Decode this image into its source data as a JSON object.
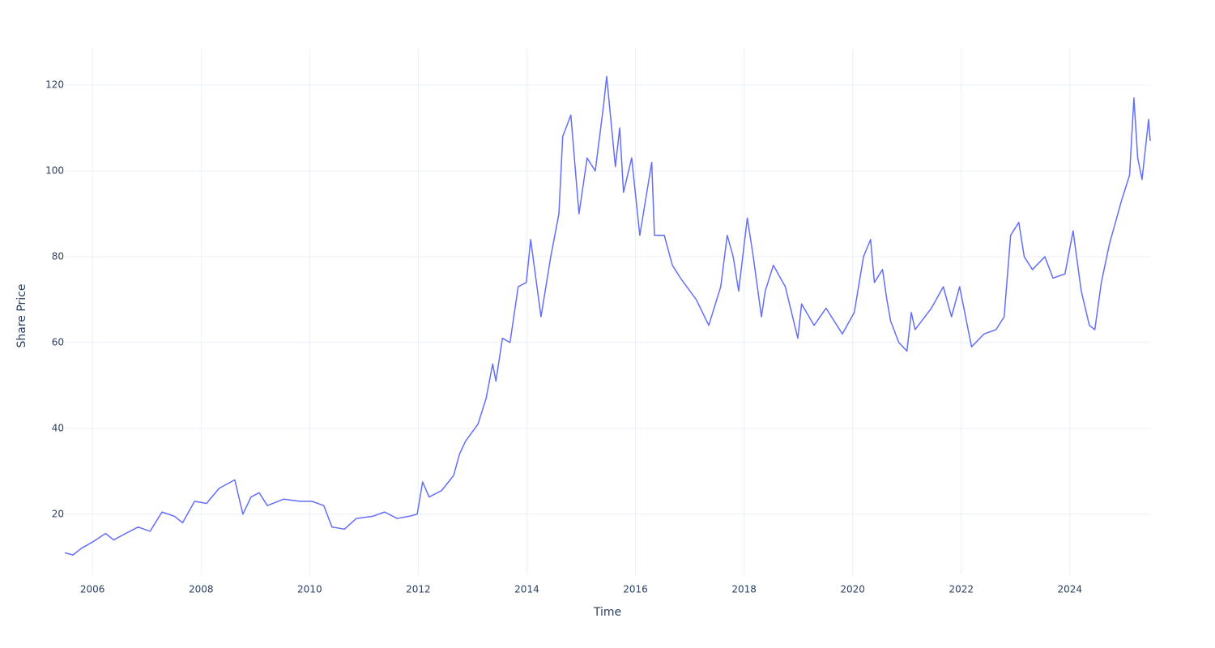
{
  "chart_data": {
    "type": "line",
    "x_label": "Time",
    "y_label": "Share Price",
    "color": "#636efa",
    "grid": true,
    "xlim": [
      2005.49,
      2025.48
    ],
    "xticks": [
      2006,
      2008,
      2010,
      2012,
      2014,
      2016,
      2018,
      2020,
      2022,
      2024
    ],
    "ylim": [
      5.8,
      128.5
    ],
    "yticks": [
      20,
      40,
      60,
      80,
      100,
      120
    ],
    "x": [
      2005.49,
      2005.64,
      2005.79,
      2006.0,
      2006.24,
      2006.39,
      2006.61,
      2006.84,
      2007.06,
      2007.28,
      2007.51,
      2007.66,
      2007.88,
      2008.1,
      2008.33,
      2008.62,
      2008.77,
      2008.92,
      2009.07,
      2009.22,
      2009.52,
      2009.82,
      2010.04,
      2010.26,
      2010.41,
      2010.64,
      2010.86,
      2011.16,
      2011.38,
      2011.61,
      2011.83,
      2011.98,
      2012.08,
      2012.2,
      2012.43,
      2012.65,
      2012.76,
      2012.87,
      2013.1,
      2013.25,
      2013.37,
      2013.43,
      2013.55,
      2013.69,
      2013.84,
      2013.99,
      2014.07,
      2014.26,
      2014.44,
      2014.59,
      2014.66,
      2014.81,
      2014.96,
      2015.11,
      2015.26,
      2015.41,
      2015.47,
      2015.63,
      2015.71,
      2015.78,
      2015.93,
      2016.08,
      2016.3,
      2016.35,
      2016.53,
      2016.68,
      2016.83,
      2017.12,
      2017.35,
      2017.57,
      2017.69,
      2017.8,
      2017.9,
      2018.06,
      2018.17,
      2018.32,
      2018.39,
      2018.54,
      2018.76,
      2018.99,
      2019.06,
      2019.29,
      2019.51,
      2019.81,
      2020.03,
      2020.2,
      2020.33,
      2020.4,
      2020.55,
      2020.63,
      2020.7,
      2020.85,
      2021.0,
      2021.08,
      2021.15,
      2021.45,
      2021.67,
      2021.82,
      2021.97,
      2022.19,
      2022.42,
      2022.64,
      2022.79,
      2022.91,
      2023.06,
      2023.16,
      2023.31,
      2023.54,
      2023.69,
      2023.91,
      2024.06,
      2024.21,
      2024.36,
      2024.46,
      2024.58,
      2024.73,
      2024.95,
      2025.1,
      2025.18,
      2025.25,
      2025.33,
      2025.45,
      2025.48
    ],
    "values": [
      11,
      10.5,
      12,
      13.5,
      15.5,
      14,
      15.5,
      17,
      16,
      20.5,
      19.5,
      18,
      23,
      22.5,
      26,
      28,
      20,
      24,
      25,
      22,
      23.5,
      23,
      23,
      22,
      17,
      16.5,
      19,
      19.5,
      20.5,
      19,
      19.5,
      20,
      27.5,
      24,
      25.5,
      29,
      34,
      37,
      41,
      47,
      55,
      51,
      61,
      60,
      73,
      74,
      84,
      66,
      80,
      90,
      108,
      113,
      90,
      103,
      100,
      115,
      122,
      101,
      110,
      95,
      103,
      85,
      102,
      85,
      85,
      78,
      75,
      70,
      64,
      73,
      85,
      80,
      72,
      89,
      80,
      66,
      72,
      78,
      73,
      61,
      69,
      64,
      68,
      62,
      67,
      80,
      84,
      74,
      77,
      70,
      65,
      60,
      58,
      67,
      63,
      68,
      73,
      66,
      73,
      59,
      62,
      63,
      66,
      85,
      88,
      80,
      77,
      80,
      75,
      76,
      86,
      72,
      64,
      63,
      74,
      83,
      93,
      99,
      117,
      103,
      98,
      112,
      107
    ]
  }
}
